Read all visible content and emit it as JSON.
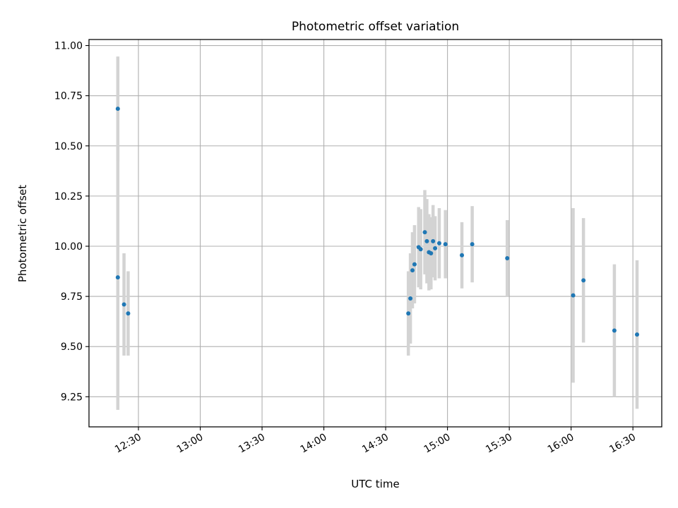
{
  "chart_data": {
    "type": "scatter",
    "title": "Photometric offset variation",
    "xlabel": "UTC time",
    "ylabel": "Photometric offset",
    "grid": true,
    "xlim": [
      "12:06",
      "16:44"
    ],
    "ylim": [
      9.1,
      11.03
    ],
    "x_ticks": [
      "12:30",
      "13:00",
      "13:30",
      "14:00",
      "14:30",
      "15:00",
      "15:30",
      "16:00",
      "16:30"
    ],
    "y_ticks": [
      9.25,
      9.5,
      9.75,
      10.0,
      10.25,
      10.5,
      10.75,
      11.0
    ],
    "y_tick_labels": [
      "9.25",
      "9.50",
      "9.75",
      "10.00",
      "10.25",
      "10.50",
      "10.75",
      "11.00"
    ],
    "marker_color": "#1f77b4",
    "errorbar_color": "#d3d3d3",
    "points": [
      {
        "x": "12:20",
        "y": 10.685,
        "yerr": 0.26
      },
      {
        "x": "12:20",
        "y": 9.845,
        "yerr": 0.66
      },
      {
        "x": "12:23",
        "y": 9.71,
        "yerr": 0.255
      },
      {
        "x": "12:25",
        "y": 9.665,
        "yerr": 0.21
      },
      {
        "x": "14:41",
        "y": 9.665,
        "yerr": 0.21
      },
      {
        "x": "14:42",
        "y": 9.74,
        "yerr": 0.225
      },
      {
        "x": "14:43",
        "y": 9.88,
        "yerr": 0.19
      },
      {
        "x": "14:44",
        "y": 9.91,
        "yerr": 0.195
      },
      {
        "x": "14:46",
        "y": 9.995,
        "yerr": 0.2
      },
      {
        "x": "14:47",
        "y": 9.985,
        "yerr": 0.2
      },
      {
        "x": "14:49",
        "y": 10.07,
        "yerr": 0.21
      },
      {
        "x": "14:50",
        "y": 10.025,
        "yerr": 0.21
      },
      {
        "x": "14:51",
        "y": 9.97,
        "yerr": 0.19
      },
      {
        "x": "14:52",
        "y": 9.965,
        "yerr": 0.18
      },
      {
        "x": "14:53",
        "y": 10.025,
        "yerr": 0.18
      },
      {
        "x": "14:54",
        "y": 9.99,
        "yerr": 0.16
      },
      {
        "x": "14:56",
        "y": 10.015,
        "yerr": 0.175
      },
      {
        "x": "14:59",
        "y": 10.01,
        "yerr": 0.17
      },
      {
        "x": "15:07",
        "y": 9.955,
        "yerr": 0.165
      },
      {
        "x": "15:12",
        "y": 10.01,
        "yerr": 0.19
      },
      {
        "x": "15:29",
        "y": 9.94,
        "yerr": 0.19
      },
      {
        "x": "16:01",
        "y": 9.755,
        "yerr": 0.435
      },
      {
        "x": "16:06",
        "y": 9.83,
        "yerr": 0.31
      },
      {
        "x": "16:21",
        "y": 9.58,
        "yerr": 0.33
      },
      {
        "x": "16:32",
        "y": 9.56,
        "yerr": 0.37
      }
    ]
  }
}
